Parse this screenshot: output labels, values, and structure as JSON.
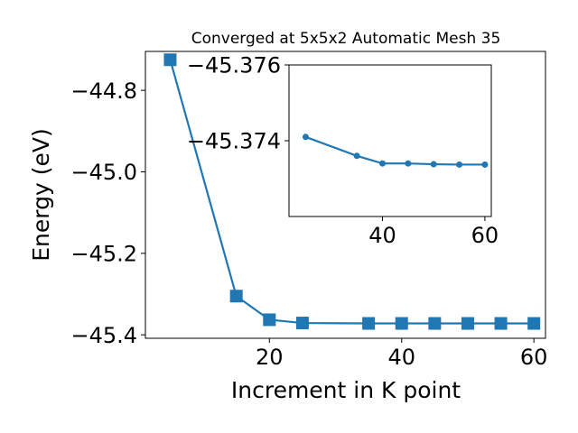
{
  "chart_data": [
    {
      "type": "line",
      "title": "Converged at 5x5x2 Automatic Mesh 35",
      "xlabel": "Increment in K point",
      "ylabel": "Energy (eV)",
      "xlim": [
        1.25,
        61.75
      ],
      "ylim": [
        -45.4085,
        -44.7045
      ],
      "xticks": [
        20,
        40,
        60
      ],
      "yticks": [
        -44.8,
        -45.0,
        -45.2,
        -45.4
      ],
      "xtick_labels": [
        "20",
        "40",
        "60"
      ],
      "ytick_labels": [
        "−44.8",
        "−45.0",
        "−45.2",
        "−45.4"
      ],
      "marker": "square",
      "color": "#1f77b4",
      "grid": false,
      "series": [
        {
          "x": [
            5,
            15,
            20,
            25,
            35,
            40,
            45,
            50,
            55,
            60
          ],
          "y": [
            -44.725,
            -45.305,
            -45.363,
            -45.371,
            -45.372,
            -45.372,
            -45.372,
            -45.372,
            -45.372,
            -45.372
          ]
        }
      ]
    },
    {
      "type": "line",
      "role": "inset",
      "xlim": [
        21.75,
        61.25
      ],
      "ylim": [
        -45.372,
        -45.376
      ],
      "xticks": [
        40,
        60
      ],
      "yticks": [
        -45.376,
        -45.374
      ],
      "xtick_labels": [
        "40",
        "60"
      ],
      "ytick_labels": [
        "−45.376",
        "−45.374"
      ],
      "marker": "circle",
      "color": "#1f77b4",
      "grid": false,
      "series": [
        {
          "x": [
            25,
            35,
            40,
            45,
            50,
            55,
            60
          ],
          "y": [
            -45.3741,
            -45.3736,
            -45.3734,
            -45.3734,
            -45.37338,
            -45.37337,
            -45.37337
          ]
        }
      ]
    }
  ]
}
